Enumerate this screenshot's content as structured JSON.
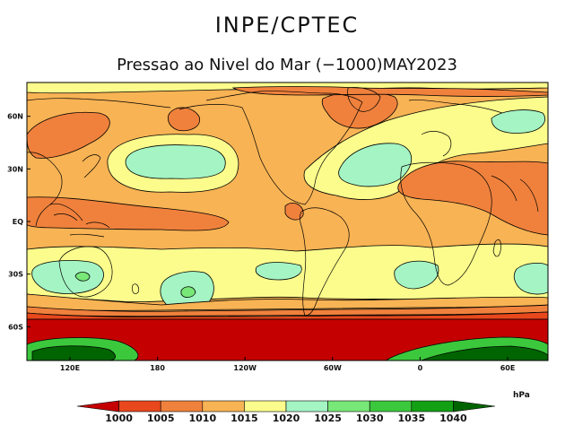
{
  "header": {
    "institution": "INPE/CPTEC",
    "title": "Pressao ao Nivel do Mar (−1000)MAY2023"
  },
  "map": {
    "projection": "cylindrical",
    "latitude_labels": [
      "60N",
      "30N",
      "EQ",
      "30S",
      "60S"
    ],
    "longitude_labels": [
      "120E",
      "180",
      "120W",
      "60W",
      "0",
      "60E"
    ],
    "field_classes": [
      {
        "name": "below-1000",
        "color": "#c40000"
      },
      {
        "name": "1000-1005",
        "color": "#e8481c"
      },
      {
        "name": "1005-1010",
        "color": "#f0813c"
      },
      {
        "name": "1010-1015",
        "color": "#f8b354"
      },
      {
        "name": "1015-1020",
        "color": "#fcfc8c"
      },
      {
        "name": "1020-1025",
        "color": "#a4f4c4"
      },
      {
        "name": "1025-1030",
        "color": "#78e878"
      },
      {
        "name": "1030-1035",
        "color": "#3cc83c"
      },
      {
        "name": "1035-1040",
        "color": "#14a014"
      },
      {
        "name": "above-1040",
        "color": "#006400"
      }
    ],
    "coast_color": "#000000"
  },
  "colorbar": {
    "unit": "hPa",
    "levels": [
      "1000",
      "1005",
      "1010",
      "1015",
      "1020",
      "1025",
      "1030",
      "1035",
      "1040"
    ],
    "colors": [
      "#c40000",
      "#e8481c",
      "#f0813c",
      "#f8b354",
      "#fcfc8c",
      "#a4f4c4",
      "#78e878",
      "#3cc83c",
      "#14a014",
      "#006400"
    ]
  }
}
